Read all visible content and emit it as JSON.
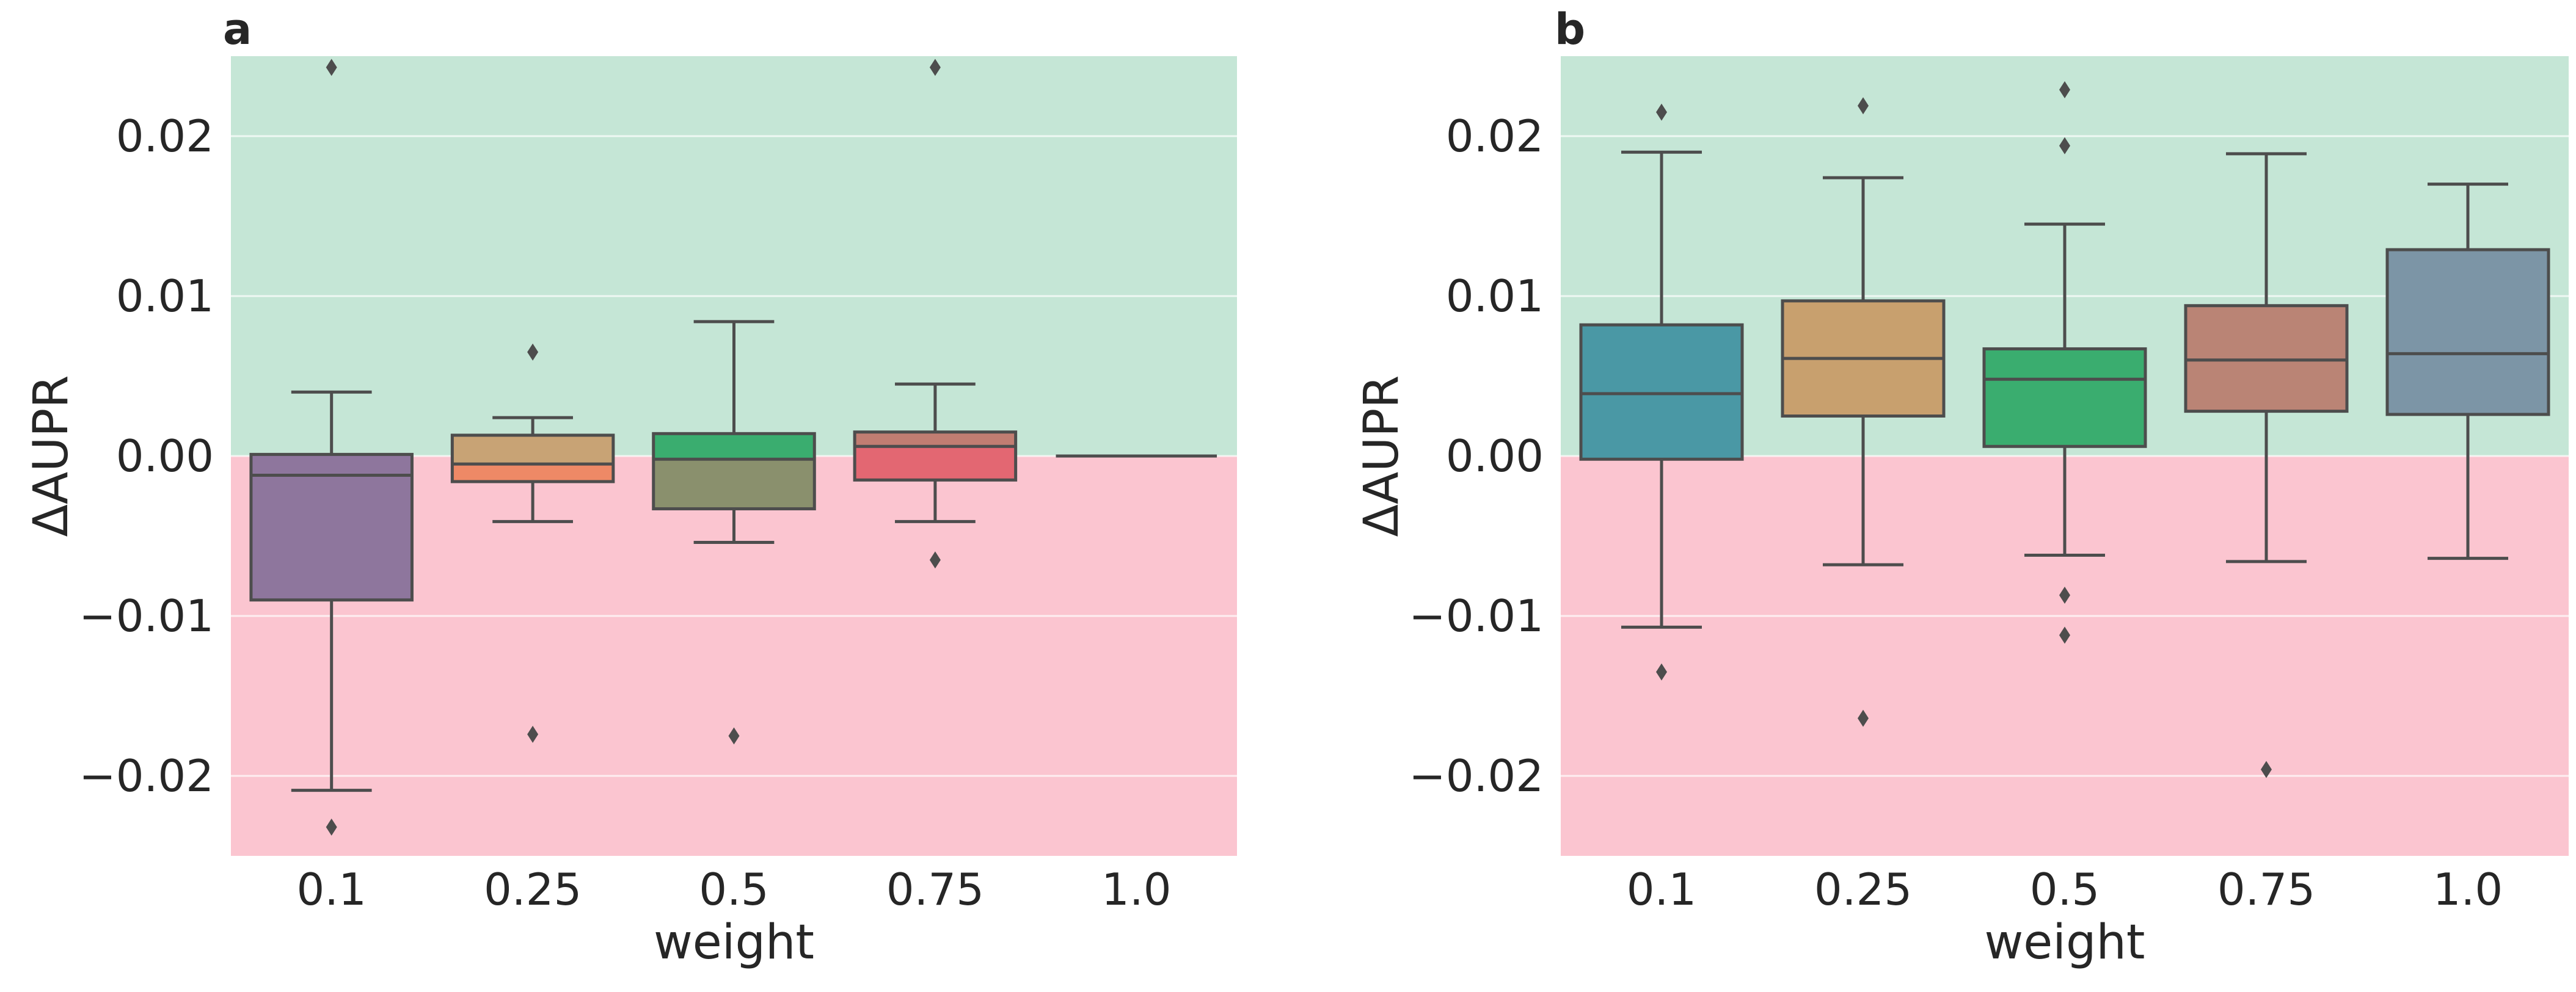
{
  "chart_data": [
    {
      "type": "box",
      "panel_label": "a",
      "xlabel": "weight",
      "ylabel": "ΔAUPR",
      "categories": [
        "0.1",
        "0.25",
        "0.5",
        "0.75",
        "1.0"
      ],
      "ylim": [
        -0.025,
        0.025
      ],
      "yticks": [
        -0.02,
        -0.01,
        0.0,
        0.01,
        0.02
      ],
      "ytick_labels": [
        "−0.02",
        "−0.01",
        "0.00",
        "0.01",
        "0.02"
      ],
      "grid": true,
      "background": {
        "above_zero": "#c5e6d6",
        "below_zero": "#fbc5d0"
      },
      "boxes": [
        {
          "category": "0.1",
          "whislo": -0.0209,
          "q1": -0.009,
          "med": -0.0012,
          "q3": 0.0001,
          "whishi": 0.004,
          "fliers": [
            0.0243,
            -0.0232
          ],
          "color": "#8e769d"
        },
        {
          "category": "0.25",
          "whislo": -0.0041,
          "q1": -0.0016,
          "med": -0.0005,
          "q3": 0.0013,
          "whishi": 0.0024,
          "fliers": [
            0.0065,
            -0.0174
          ],
          "color": "#c8a375",
          "color_lower": "#ee8966"
        },
        {
          "category": "0.5",
          "whislo": -0.0054,
          "q1": -0.0033,
          "med": -0.0002,
          "q3": 0.0014,
          "whishi": 0.0084,
          "fliers": [
            -0.0175
          ],
          "color": "#3aad6f",
          "color_lower": "#8a906d"
        },
        {
          "category": "0.75",
          "whislo": -0.0041,
          "q1": -0.0015,
          "med": 0.0006,
          "q3": 0.0015,
          "whishi": 0.0045,
          "fliers": [
            0.0243,
            -0.0065
          ],
          "color": "#c17d72",
          "color_lower": "#e36772"
        },
        {
          "category": "1.0",
          "whislo": 0.0,
          "q1": 0.0,
          "med": 0.0,
          "q3": 0.0,
          "whishi": 0.0,
          "fliers": [],
          "color": "#8a9aa8"
        }
      ]
    },
    {
      "type": "box",
      "panel_label": "b",
      "xlabel": "weight",
      "ylabel": "ΔAUPR",
      "categories": [
        "0.1",
        "0.25",
        "0.5",
        "0.75",
        "1.0"
      ],
      "ylim": [
        -0.025,
        0.025
      ],
      "yticks": [
        -0.02,
        -0.01,
        0.0,
        0.01,
        0.02
      ],
      "ytick_labels": [
        "−0.02",
        "−0.01",
        "0.00",
        "0.01",
        "0.02"
      ],
      "grid": true,
      "background": {
        "above_zero": "#c5e6d6",
        "below_zero": "#fbc5d0"
      },
      "boxes": [
        {
          "category": "0.1",
          "whislo": -0.0107,
          "q1": -0.0002,
          "med": 0.0039,
          "q3": 0.0082,
          "whishi": 0.019,
          "fliers": [
            0.0215,
            -0.0135
          ],
          "color": "#4a98a5"
        },
        {
          "category": "0.25",
          "whislo": -0.0068,
          "q1": 0.0025,
          "med": 0.0061,
          "q3": 0.0097,
          "whishi": 0.0174,
          "fliers": [
            0.0219,
            -0.0164
          ],
          "color": "#c8a06e"
        },
        {
          "category": "0.5",
          "whislo": -0.0062,
          "q1": 0.0006,
          "med": 0.0048,
          "q3": 0.0067,
          "whishi": 0.0145,
          "fliers": [
            0.0229,
            0.0194,
            -0.0087,
            -0.0112
          ],
          "color": "#3aad6f"
        },
        {
          "category": "0.75",
          "whislo": -0.0066,
          "q1": 0.0028,
          "med": 0.006,
          "q3": 0.0094,
          "whishi": 0.0189,
          "fliers": [
            -0.0196
          ],
          "color": "#ba8475"
        },
        {
          "category": "1.0",
          "whislo": -0.0064,
          "q1": 0.0026,
          "med": 0.0064,
          "q3": 0.0129,
          "whishi": 0.017,
          "fliers": [],
          "color": "#7c95a6"
        }
      ]
    }
  ]
}
